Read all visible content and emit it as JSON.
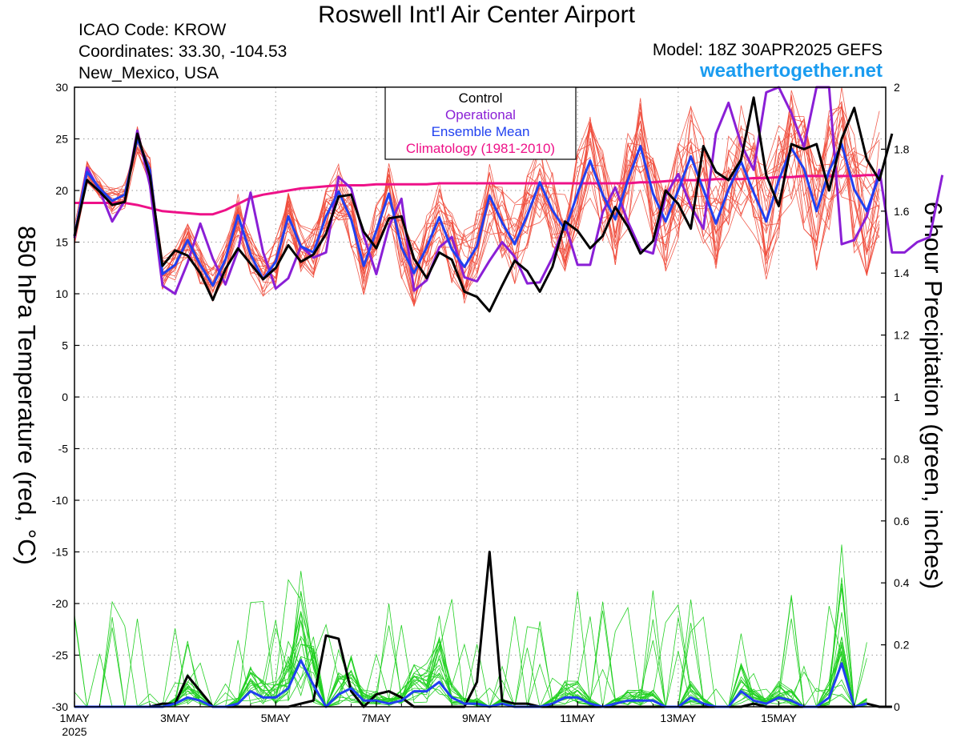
{
  "header": {
    "title": "Roswell Int'l Air Center Airport",
    "icao": "ICAO Code: KROW",
    "coordinates": "Coordinates: 33.30, -104.53",
    "location": "New_Mexico, USA",
    "model": "Model: 18Z 30APR2025 GEFS",
    "website": "weathertogether.net"
  },
  "colors": {
    "control": "#000000",
    "operational": "#8a1fd6",
    "ensemble_mean": "#2040f0",
    "climatology": "#ee1188",
    "temp_members": "#f04a3a",
    "precip_members": "#22d022",
    "website": "#1a9cf0"
  },
  "chart_data": {
    "type": "line",
    "title": "Roswell Int'l Air Center Airport",
    "ylabel_left": "850 hPa Temperature (red, °C)",
    "ylabel_right": "6-hour Precipitation (green, inches)",
    "ylim_left": [
      -30,
      30
    ],
    "ylim_right": [
      0,
      2
    ],
    "xlim_hours": [
      0,
      387
    ],
    "x_tick_labels": [
      "1MAY",
      "3MAY",
      "5MAY",
      "7MAY",
      "9MAY",
      "11MAY",
      "13MAY",
      "15MAY"
    ],
    "x_tick_hours": [
      0,
      48,
      96,
      144,
      192,
      240,
      288,
      336
    ],
    "x_year_label": "2025",
    "y_left_ticks": [
      -30,
      -25,
      -20,
      -15,
      -10,
      -5,
      0,
      5,
      10,
      15,
      20,
      25,
      30
    ],
    "y_right_ticks": [
      0,
      0.2,
      0.4,
      0.6,
      0.8,
      1,
      1.2,
      1.4,
      1.6,
      1.8,
      2
    ],
    "grid": true,
    "legend_position": "top-center",
    "legend": [
      "Control",
      "Operational",
      "Ensemble Mean",
      "Climatology (1981-2010)"
    ],
    "time_step_hours": 6,
    "temperature_series": [
      {
        "name": "Control",
        "start_hour": 0,
        "values": [
          15.6,
          21.0,
          19.9,
          18.6,
          18.9,
          25.5,
          21.4,
          12.7,
          14.2,
          13.7,
          12.0,
          9.4,
          12.4,
          14.4,
          12.9,
          11.4,
          12.5,
          14.7,
          13.1,
          13.8,
          15.8,
          19.4,
          19.6,
          16.0,
          14.4,
          17.3,
          17.5,
          13.4,
          11.5,
          14.0,
          13.3,
          10.2,
          9.7,
          8.3,
          10.8,
          13.2,
          12.2,
          10.2,
          12.6,
          17.0,
          16.1,
          14.4,
          15.6,
          18.4,
          16.5,
          13.9,
          15.1,
          20.0,
          18.7,
          16.3,
          24.3,
          21.8,
          21.0,
          23.0,
          29.0,
          21.5,
          18.5,
          24.5,
          24.0,
          24.5,
          20.0,
          25.0,
          28.0,
          23.0,
          21.0,
          25.5
        ]
      },
      {
        "name": "Operational",
        "start_hour": 0,
        "values": [
          15.4,
          22.2,
          20.0,
          17.0,
          19.0,
          25.8,
          20.5,
          10.8,
          10.0,
          13.0,
          16.8,
          13.4,
          10.9,
          14.2,
          19.8,
          14.0,
          10.5,
          11.5,
          14.6,
          13.5,
          14.0,
          21.3,
          20.2,
          15.6,
          11.9,
          16.5,
          19.2,
          10.3,
          11.3,
          14.5,
          15.5,
          11.6,
          11.2,
          13.2,
          15.0,
          13.6,
          11.0,
          11.1,
          13.5,
          16.8,
          12.8,
          12.8,
          17.9,
          20.3,
          17.0,
          14.3,
          13.9,
          19.5,
          21.6,
          18.5,
          16.3,
          25.5,
          28.5,
          24.5,
          22.0,
          29.5,
          30.5,
          27.5,
          24.2,
          30.0,
          31.5,
          14.8,
          15.2,
          17.5,
          22.0,
          14.0,
          14.0,
          15.0,
          15.5,
          21.5
        ]
      },
      {
        "name": "Ensemble Mean",
        "start_hour": 0,
        "values": [
          15.6,
          21.8,
          20.2,
          19.0,
          19.6,
          25.0,
          22.0,
          11.9,
          12.8,
          15.2,
          12.8,
          10.8,
          13.3,
          17.6,
          13.8,
          11.4,
          13.1,
          17.5,
          14.6,
          14.0,
          17.5,
          19.9,
          17.2,
          12.7,
          16.1,
          19.7,
          14.5,
          12.0,
          14.5,
          17.4,
          14.3,
          12.6,
          14.6,
          19.5,
          16.9,
          14.8,
          17.6,
          20.8,
          18.1,
          16.2,
          19.7,
          22.9,
          19.6,
          17.2,
          21.0,
          24.3,
          19.7,
          17.0,
          20.0,
          23.3,
          20.1,
          16.8,
          20.1,
          22.8,
          19.8,
          17.0,
          21.0,
          24.1,
          22.1,
          18.0,
          21.9,
          24.5,
          20.1,
          18.0,
          21.5
        ]
      },
      {
        "name": "Climatology (1981-2010)",
        "start_hour": 0,
        "values": [
          18.8,
          18.8,
          18.8,
          18.8,
          18.8,
          18.6,
          18.3,
          18.0,
          17.9,
          17.8,
          17.7,
          17.7,
          18.1,
          18.7,
          19.3,
          19.6,
          19.8,
          20.0,
          20.2,
          20.3,
          20.4,
          20.5,
          20.5,
          20.5,
          20.6,
          20.6,
          20.6,
          20.6,
          20.6,
          20.7,
          20.7,
          20.7,
          20.7,
          20.7,
          20.7,
          20.7,
          20.7,
          20.7,
          20.7,
          20.7,
          20.7,
          20.7,
          20.7,
          20.7,
          20.7,
          20.8,
          20.8,
          20.9,
          21.0,
          21.0,
          21.0,
          21.1,
          21.1,
          21.1,
          21.2,
          21.2,
          21.3,
          21.3,
          21.4,
          21.4,
          21.4,
          21.4,
          21.4,
          21.5,
          21.5
        ]
      }
    ],
    "precipitation_series": [
      {
        "name": "Control",
        "start_hour": 0,
        "values": [
          0,
          0,
          0,
          0,
          0,
          0,
          0,
          0.01,
          0.01,
          0.1,
          0.05,
          0,
          0,
          0,
          0,
          0,
          0,
          0,
          0.01,
          0.02,
          0.23,
          0.22,
          0.05,
          0,
          0.04,
          0.05,
          0.03,
          0,
          0,
          0,
          0,
          0,
          0.08,
          0.5,
          0.02,
          0.01,
          0.01,
          0,
          0,
          0,
          0,
          0,
          0,
          0,
          0,
          0,
          0,
          0,
          0,
          0,
          0,
          0,
          0,
          0,
          0.01,
          0,
          0,
          0,
          0,
          0,
          0,
          0,
          0,
          0.01,
          0,
          0
        ]
      },
      {
        "name": "Ensemble Mean",
        "start_hour": 0,
        "values": [
          0,
          0,
          0,
          0,
          0,
          0,
          0,
          0,
          0.01,
          0.03,
          0.02,
          0,
          0,
          0.01,
          0.05,
          0.03,
          0.03,
          0.06,
          0.15,
          0.07,
          0.0,
          0.04,
          0.06,
          0.02,
          0.02,
          0.01,
          0.02,
          0.05,
          0.05,
          0.08,
          0.03,
          0.01,
          0.01,
          0.0,
          0.01,
          0.0,
          0.0,
          0.0,
          0.01,
          0.03,
          0.03,
          0.01,
          0.0,
          0.01,
          0.02,
          0.02,
          0.02,
          0.0,
          0.0,
          0.03,
          0.01,
          0.0,
          0.0,
          0.05,
          0.02,
          0.01,
          0.03,
          0.02,
          0.0,
          0.0,
          0.03,
          0.14,
          0.0,
          0.01
        ]
      }
    ]
  }
}
